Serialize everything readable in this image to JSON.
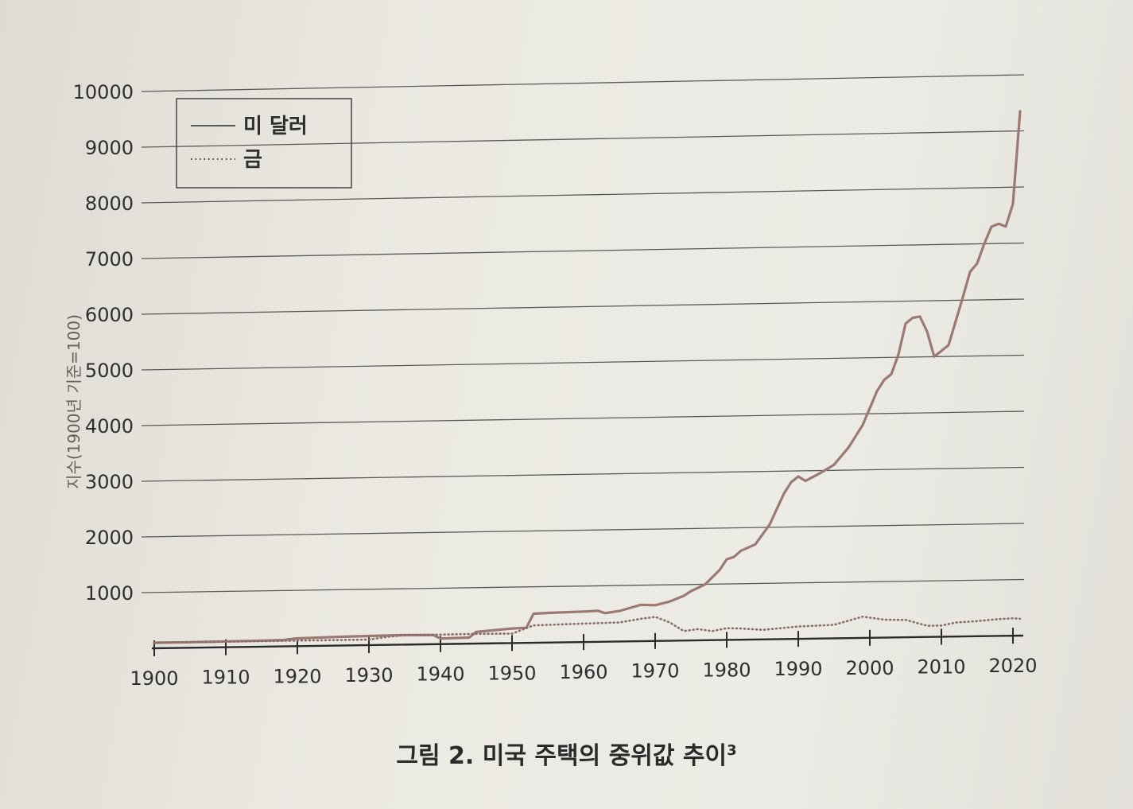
{
  "caption": {
    "text": "그림 2. 미국 주택의 중위값 추이",
    "superscript": "3"
  },
  "chart_data": {
    "type": "line",
    "ylabel": "지수(1900년 기준=100)",
    "xlabel": "",
    "x_ticks": [
      1900,
      1910,
      1920,
      1930,
      1940,
      1950,
      1960,
      1970,
      1980,
      1990,
      2000,
      2010,
      2020
    ],
    "y_ticks": [
      1000,
      2000,
      3000,
      4000,
      5000,
      6000,
      7000,
      8000,
      9000,
      10000
    ],
    "xlim": [
      1900,
      2021
    ],
    "ylim": [
      0,
      10000
    ],
    "grid": "horizontal",
    "legend_position": "top-left",
    "series": [
      {
        "name": "미 달러",
        "style": "solid",
        "color": "#9a7a72",
        "points": [
          [
            1900,
            100
          ],
          [
            1905,
            100
          ],
          [
            1910,
            105
          ],
          [
            1915,
            110
          ],
          [
            1918,
            115
          ],
          [
            1920,
            140
          ],
          [
            1925,
            155
          ],
          [
            1930,
            165
          ],
          [
            1935,
            170
          ],
          [
            1939,
            165
          ],
          [
            1940,
            100
          ],
          [
            1944,
            110
          ],
          [
            1945,
            210
          ],
          [
            1950,
            260
          ],
          [
            1952,
            270
          ],
          [
            1953,
            520
          ],
          [
            1955,
            530
          ],
          [
            1960,
            545
          ],
          [
            1962,
            555
          ],
          [
            1963,
            510
          ],
          [
            1965,
            545
          ],
          [
            1968,
            650
          ],
          [
            1970,
            640
          ],
          [
            1972,
            700
          ],
          [
            1974,
            800
          ],
          [
            1975,
            880
          ],
          [
            1977,
            1000
          ],
          [
            1979,
            1250
          ],
          [
            1980,
            1440
          ],
          [
            1981,
            1480
          ],
          [
            1982,
            1590
          ],
          [
            1984,
            1700
          ],
          [
            1986,
            2050
          ],
          [
            1988,
            2600
          ],
          [
            1989,
            2800
          ],
          [
            1990,
            2900
          ],
          [
            1991,
            2820
          ],
          [
            1993,
            2950
          ],
          [
            1995,
            3100
          ],
          [
            1997,
            3400
          ],
          [
            1999,
            3800
          ],
          [
            2001,
            4400
          ],
          [
            2002,
            4600
          ],
          [
            2003,
            4700
          ],
          [
            2004,
            5050
          ],
          [
            2005,
            5600
          ],
          [
            2006,
            5700
          ],
          [
            2007,
            5720
          ],
          [
            2008,
            5450
          ],
          [
            2009,
            5000
          ],
          [
            2010,
            5100
          ],
          [
            2011,
            5200
          ],
          [
            2013,
            6050
          ],
          [
            2014,
            6500
          ],
          [
            2015,
            6650
          ],
          [
            2016,
            7000
          ],
          [
            2017,
            7300
          ],
          [
            2018,
            7350
          ],
          [
            2019,
            7300
          ],
          [
            2020,
            7700
          ],
          [
            2021,
            9350
          ]
        ]
      },
      {
        "name": "금",
        "style": "dotted",
        "color": "#8a6e67",
        "points": [
          [
            1900,
            100
          ],
          [
            1910,
            100
          ],
          [
            1920,
            100
          ],
          [
            1930,
            100
          ],
          [
            1933,
            150
          ],
          [
            1935,
            170
          ],
          [
            1940,
            170
          ],
          [
            1945,
            175
          ],
          [
            1950,
            170
          ],
          [
            1953,
            310
          ],
          [
            1960,
            330
          ],
          [
            1965,
            340
          ],
          [
            1968,
            400
          ],
          [
            1970,
            430
          ],
          [
            1972,
            330
          ],
          [
            1974,
            170
          ],
          [
            1976,
            200
          ],
          [
            1978,
            160
          ],
          [
            1980,
            210
          ],
          [
            1982,
            200
          ],
          [
            1985,
            170
          ],
          [
            1988,
            200
          ],
          [
            1990,
            220
          ],
          [
            1995,
            240
          ],
          [
            1999,
            380
          ],
          [
            2002,
            320
          ],
          [
            2005,
            310
          ],
          [
            2008,
            200
          ],
          [
            2010,
            200
          ],
          [
            2012,
            250
          ],
          [
            2015,
            270
          ],
          [
            2018,
            300
          ],
          [
            2020,
            310
          ],
          [
            2021,
            300
          ]
        ]
      }
    ]
  }
}
